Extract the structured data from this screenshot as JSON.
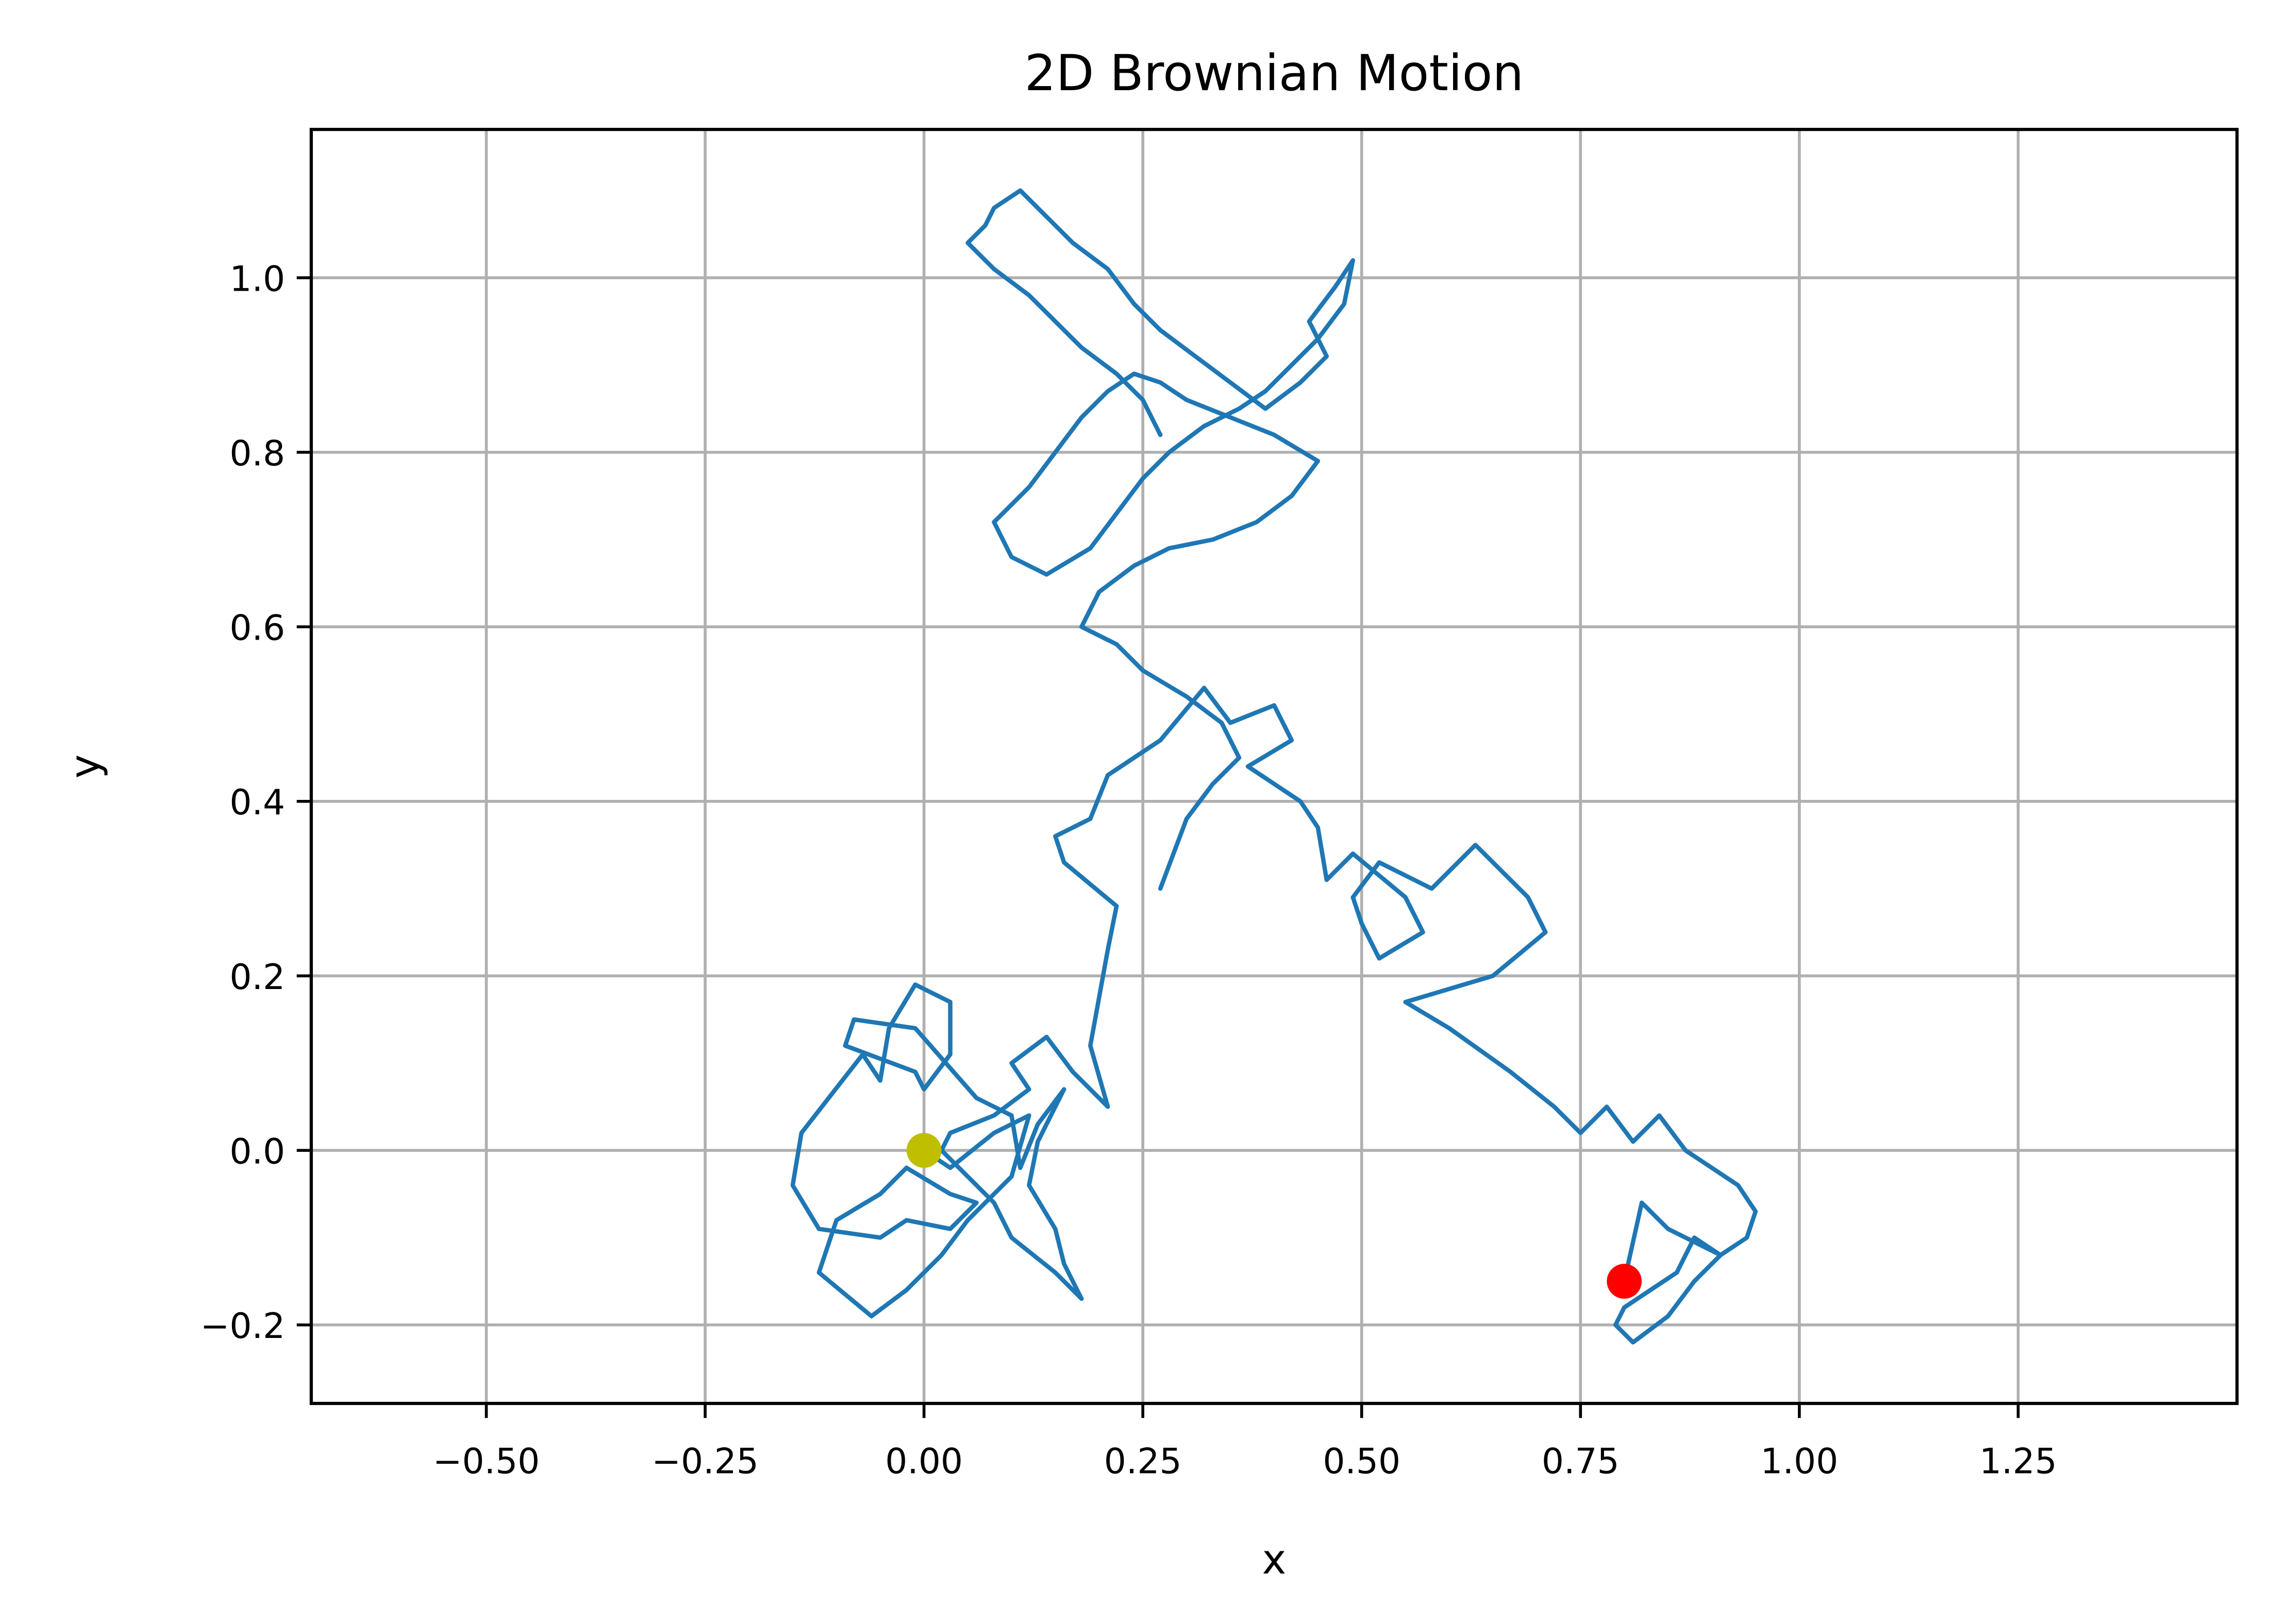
{
  "chart_data": {
    "type": "line",
    "title": "2D Brownian Motion",
    "xlabel": "x",
    "ylabel": "y",
    "xlim": [
      -0.7,
      1.5
    ],
    "ylim": [
      -0.29,
      1.17
    ],
    "xticks": [
      -0.5,
      -0.25,
      0.0,
      0.25,
      0.5,
      0.75,
      1.0,
      1.25
    ],
    "xtick_labels": [
      "−0.50",
      "−0.25",
      "0.00",
      "0.25",
      "0.50",
      "0.75",
      "1.00",
      "1.25"
    ],
    "yticks": [
      -0.2,
      0.0,
      0.2,
      0.4,
      0.6,
      0.8,
      1.0
    ],
    "ytick_labels": [
      "−0.2",
      "0.0",
      "0.2",
      "0.4",
      "0.6",
      "0.8",
      "1.0"
    ],
    "grid": true,
    "legend": false,
    "colors": {
      "path": "#1f77b4",
      "start": "#bfbf00",
      "end": "#ff0000",
      "grid": "#b0b0b0"
    },
    "series": [
      {
        "x": [
          0.0,
          0.03,
          0.08,
          0.12,
          0.1,
          0.05,
          0.02,
          -0.02,
          -0.06,
          -0.12,
          -0.1,
          -0.05,
          -0.02,
          0.03,
          0.06,
          0.03,
          -0.02,
          -0.05,
          -0.12,
          -0.15,
          -0.14,
          -0.07,
          -0.05,
          -0.04,
          -0.01,
          0.03,
          0.03,
          0.0,
          -0.01,
          -0.09,
          -0.08,
          -0.01,
          0.06,
          0.1,
          0.11,
          0.13,
          0.16,
          0.13,
          0.12,
          0.15,
          0.16,
          0.18,
          0.15,
          0.1,
          0.08,
          0.05,
          0.02,
          0.03,
          0.08,
          0.12,
          0.1,
          0.14,
          0.17,
          0.21,
          0.19,
          0.21,
          0.22,
          0.16,
          0.15,
          0.19,
          0.21,
          0.27,
          0.32,
          0.35,
          0.4,
          0.42,
          0.37,
          0.43,
          0.45,
          0.46,
          0.49,
          0.55,
          0.57,
          0.52,
          0.5,
          0.49,
          0.52,
          0.58,
          0.63,
          0.69,
          0.71,
          0.65,
          0.55,
          0.6,
          0.67,
          0.72,
          0.75,
          0.78,
          0.81,
          0.84,
          0.87,
          0.9,
          0.93,
          0.95,
          0.94,
          0.91,
          0.88,
          0.86,
          0.83,
          0.8,
          0.79,
          0.81,
          0.85,
          0.88,
          0.91,
          0.85,
          0.82,
          0.8
        ],
        "y": [
          0.0,
          -0.02,
          0.02,
          0.04,
          -0.03,
          -0.08,
          -0.12,
          -0.16,
          -0.19,
          -0.14,
          -0.08,
          -0.05,
          -0.02,
          -0.05,
          -0.06,
          -0.09,
          -0.08,
          -0.1,
          -0.09,
          -0.04,
          0.02,
          0.11,
          0.08,
          0.14,
          0.19,
          0.17,
          0.11,
          0.07,
          0.09,
          0.12,
          0.15,
          0.14,
          0.06,
          0.04,
          -0.02,
          0.03,
          0.07,
          0.01,
          -0.04,
          -0.09,
          -0.13,
          -0.17,
          -0.14,
          -0.1,
          -0.06,
          -0.03,
          0.0,
          0.02,
          0.04,
          0.07,
          0.1,
          0.13,
          0.09,
          0.05,
          0.12,
          0.23,
          0.28,
          0.33,
          0.36,
          0.38,
          0.43,
          0.47,
          0.53,
          0.49,
          0.51,
          0.47,
          0.44,
          0.4,
          0.37,
          0.31,
          0.34,
          0.29,
          0.25,
          0.22,
          0.26,
          0.29,
          0.33,
          0.3,
          0.35,
          0.29,
          0.25,
          0.2,
          0.17,
          0.14,
          0.09,
          0.05,
          0.02,
          0.05,
          0.01,
          0.04,
          0.0,
          -0.02,
          -0.04,
          -0.07,
          -0.1,
          -0.12,
          -0.1,
          -0.14,
          -0.16,
          -0.18,
          -0.2,
          -0.22,
          -0.19,
          -0.15,
          -0.12,
          -0.09,
          -0.06,
          -0.15
        ]
      },
      {
        "x": [
          0.27,
          0.3,
          0.33,
          0.36,
          0.34,
          0.3,
          0.25,
          0.22,
          0.18,
          0.2,
          0.24,
          0.28,
          0.33,
          0.38,
          0.42,
          0.45,
          0.4,
          0.35,
          0.3,
          0.27,
          0.24,
          0.21,
          0.18,
          0.15,
          0.12,
          0.08,
          0.1,
          0.14,
          0.19,
          0.22,
          0.25,
          0.28,
          0.32,
          0.36,
          0.39,
          0.42,
          0.45,
          0.48,
          0.49,
          0.47,
          0.44,
          0.46,
          0.43,
          0.39,
          0.35,
          0.31,
          0.27,
          0.24,
          0.21,
          0.17,
          0.14,
          0.11,
          0.08,
          0.07,
          0.05,
          0.08,
          0.12,
          0.15,
          0.18,
          0.22,
          0.25,
          0.27
        ],
        "y": [
          0.3,
          0.38,
          0.42,
          0.45,
          0.49,
          0.52,
          0.55,
          0.58,
          0.6,
          0.64,
          0.67,
          0.69,
          0.7,
          0.72,
          0.75,
          0.79,
          0.82,
          0.84,
          0.86,
          0.88,
          0.89,
          0.87,
          0.84,
          0.8,
          0.76,
          0.72,
          0.68,
          0.66,
          0.69,
          0.73,
          0.77,
          0.8,
          0.83,
          0.85,
          0.87,
          0.9,
          0.93,
          0.97,
          1.02,
          0.99,
          0.95,
          0.91,
          0.88,
          0.85,
          0.88,
          0.91,
          0.94,
          0.97,
          1.01,
          1.04,
          1.07,
          1.1,
          1.08,
          1.06,
          1.04,
          1.01,
          0.98,
          0.95,
          0.92,
          0.89,
          0.86,
          0.82
        ]
      }
    ],
    "markers": [
      {
        "label": "start",
        "x": 0.0,
        "y": 0.0
      },
      {
        "label": "end",
        "x": 0.8,
        "y": -0.15
      }
    ]
  }
}
